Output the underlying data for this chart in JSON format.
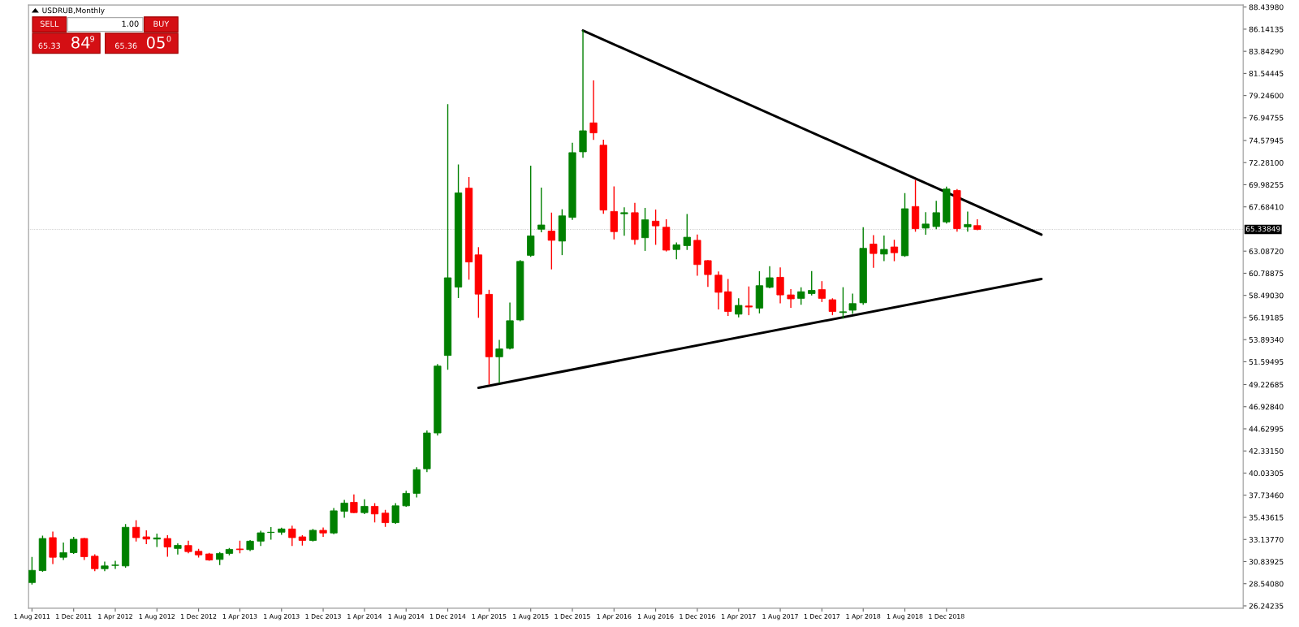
{
  "chart_data": {
    "type": "candlestick",
    "title": "USDRUB,Monthly",
    "x": [
      "2011-08",
      "2011-09",
      "2011-10",
      "2011-11",
      "2011-12",
      "2012-01",
      "2012-02",
      "2012-03",
      "2012-04",
      "2012-05",
      "2012-06",
      "2012-07",
      "2012-08",
      "2012-09",
      "2012-10",
      "2012-11",
      "2012-12",
      "2013-01",
      "2013-02",
      "2013-03",
      "2013-04",
      "2013-05",
      "2013-06",
      "2013-07",
      "2013-08",
      "2013-09",
      "2013-10",
      "2013-11",
      "2013-12",
      "2014-01",
      "2014-02",
      "2014-03",
      "2014-04",
      "2014-05",
      "2014-06",
      "2014-07",
      "2014-08",
      "2014-09",
      "2014-10",
      "2014-11",
      "2014-12",
      "2015-01",
      "2015-02",
      "2015-03",
      "2015-04",
      "2015-05",
      "2015-06",
      "2015-07",
      "2015-08",
      "2015-09",
      "2015-10",
      "2015-11",
      "2015-12",
      "2016-01",
      "2016-02",
      "2016-03",
      "2016-04",
      "2016-05",
      "2016-06",
      "2016-07",
      "2016-08",
      "2016-09",
      "2016-10",
      "2016-11",
      "2016-12",
      "2017-01",
      "2017-02",
      "2017-03",
      "2017-04",
      "2017-05",
      "2017-06",
      "2017-07",
      "2017-08",
      "2017-09",
      "2017-10",
      "2017-11",
      "2017-12",
      "2018-01",
      "2018-02",
      "2018-03",
      "2018-04",
      "2018-05",
      "2018-06",
      "2018-07",
      "2018-08",
      "2018-09",
      "2018-10",
      "2018-11",
      "2018-12",
      "2019-01",
      "2019-02",
      "2019-03"
    ],
    "ohlc": [
      [
        28.66,
        31.26,
        28.52,
        29.93
      ],
      [
        29.9,
        33.47,
        29.85,
        33.24
      ],
      [
        33.33,
        33.89,
        30.64,
        31.29
      ],
      [
        31.29,
        32.76,
        31.06,
        31.77
      ],
      [
        31.77,
        33.35,
        31.69,
        33.16
      ],
      [
        33.24,
        33.24,
        31.06,
        31.35
      ],
      [
        31.4,
        31.54,
        29.9,
        30.1
      ],
      [
        30.1,
        30.78,
        29.9,
        30.39
      ],
      [
        30.44,
        30.87,
        30.13,
        30.48
      ],
      [
        30.39,
        34.68,
        30.27,
        34.4
      ],
      [
        34.4,
        35.08,
        32.99,
        33.33
      ],
      [
        33.41,
        34.03,
        32.7,
        33.18
      ],
      [
        33.18,
        33.69,
        32.42,
        33.3
      ],
      [
        33.24,
        33.52,
        31.4,
        32.36
      ],
      [
        32.2,
        32.68,
        31.63,
        32.53
      ],
      [
        32.51,
        32.96,
        31.77,
        31.88
      ],
      [
        31.91,
        32.11,
        31.32,
        31.54
      ],
      [
        31.63,
        31.69,
        30.98,
        31.01
      ],
      [
        31.06,
        31.77,
        30.53,
        31.69
      ],
      [
        31.69,
        32.2,
        31.54,
        32.11
      ],
      [
        32.15,
        32.96,
        31.77,
        32.08
      ],
      [
        32.08,
        33.01,
        31.99,
        32.96
      ],
      [
        32.96,
        33.98,
        32.51,
        33.83
      ],
      [
        33.86,
        34.37,
        33.18,
        33.89
      ],
      [
        33.89,
        34.29,
        33.69,
        34.23
      ],
      [
        34.23,
        34.51,
        32.51,
        33.33
      ],
      [
        33.41,
        33.52,
        32.56,
        33.04
      ],
      [
        33.04,
        34.17,
        32.99,
        34.09
      ],
      [
        34.09,
        34.32,
        33.47,
        33.81
      ],
      [
        33.81,
        36.35,
        33.75,
        36.12
      ],
      [
        36.07,
        37.2,
        35.45,
        36.92
      ],
      [
        37.0,
        37.76,
        35.93,
        35.93
      ],
      [
        35.93,
        37.26,
        35.84,
        36.58
      ],
      [
        36.58,
        36.86,
        34.97,
        35.79
      ],
      [
        35.87,
        36.15,
        34.51,
        34.88
      ],
      [
        34.88,
        36.86,
        34.82,
        36.63
      ],
      [
        36.63,
        38.13,
        36.58,
        37.93
      ],
      [
        37.93,
        40.59,
        37.57,
        40.39
      ],
      [
        40.48,
        44.4,
        40.2,
        44.2
      ],
      [
        44.2,
        51.3,
        44.0,
        51.15
      ],
      [
        52.25,
        78.3,
        50.82,
        60.32
      ],
      [
        59.36,
        72.03,
        58.27,
        69.13
      ],
      [
        69.63,
        70.72,
        60.18,
        61.96
      ],
      [
        62.7,
        63.44,
        56.22,
        58.62
      ],
      [
        58.6,
        59.01,
        49.29,
        52.11
      ],
      [
        52.11,
        53.81,
        49.43,
        52.93
      ],
      [
        52.99,
        57.69,
        52.93,
        55.86
      ],
      [
        55.94,
        62.1,
        55.86,
        62.02
      ],
      [
        62.65,
        71.9,
        62.56,
        64.67
      ],
      [
        65.36,
        69.63,
        65.11,
        65.8
      ],
      [
        65.17,
        67.03,
        61.25,
        64.21
      ],
      [
        64.13,
        67.38,
        62.73,
        66.75
      ],
      [
        66.59,
        74.28,
        66.4,
        73.32
      ],
      [
        73.4,
        85.96,
        72.85,
        75.59
      ],
      [
        76.41,
        80.76,
        74.69,
        75.37
      ],
      [
        74.09,
        74.61,
        67.02,
        67.35
      ],
      [
        67.21,
        69.76,
        64.37,
        65.11
      ],
      [
        66.97,
        67.57,
        64.75,
        67.08
      ],
      [
        67.08,
        68.04,
        63.82,
        64.29
      ],
      [
        64.48,
        67.52,
        63.17,
        66.34
      ],
      [
        66.2,
        67.35,
        63.8,
        65.71
      ],
      [
        65.57,
        66.34,
        63.11,
        63.19
      ],
      [
        63.25,
        63.93,
        62.29,
        63.74
      ],
      [
        63.66,
        66.89,
        63.27,
        64.53
      ],
      [
        64.21,
        64.75,
        60.59,
        61.69
      ],
      [
        62.1,
        62.1,
        59.44,
        60.65
      ],
      [
        60.59,
        60.92,
        57.09,
        58.81
      ],
      [
        58.87,
        60.13,
        56.41,
        56.82
      ],
      [
        56.54,
        58.13,
        56.27,
        57.45
      ],
      [
        57.39,
        59.36,
        56.49,
        57.28
      ],
      [
        57.17,
        60.95,
        56.68,
        59.5
      ],
      [
        59.33,
        61.47,
        59.28,
        60.32
      ],
      [
        60.37,
        61.33,
        57.72,
        58.54
      ],
      [
        58.54,
        59.09,
        57.25,
        58.13
      ],
      [
        58.18,
        59.28,
        57.58,
        58.87
      ],
      [
        58.68,
        60.95,
        58.54,
        59.01
      ],
      [
        59.09,
        59.91,
        57.86,
        58.18
      ],
      [
        58.04,
        58.13,
        56.49,
        56.82
      ],
      [
        56.71,
        59.28,
        56.13,
        56.79
      ],
      [
        56.95,
        58.62,
        56.62,
        57.64
      ],
      [
        57.72,
        65.52,
        57.58,
        63.38
      ],
      [
        63.82,
        64.7,
        61.41,
        62.84
      ],
      [
        62.78,
        64.64,
        62.1,
        63.27
      ],
      [
        63.52,
        64.21,
        62.1,
        62.92
      ],
      [
        62.61,
        69.06,
        62.55,
        67.49
      ],
      [
        67.72,
        70.43,
        65.16,
        65.42
      ],
      [
        65.48,
        67.08,
        64.84,
        65.9
      ],
      [
        65.64,
        68.26,
        65.42,
        67.08
      ],
      [
        66.12,
        69.73,
        66.02,
        69.54
      ],
      [
        69.38,
        69.47,
        65.16,
        65.42
      ],
      [
        65.61,
        67.14,
        65.16,
        65.86
      ],
      [
        65.74,
        66.34,
        65.32,
        65.33
      ]
    ],
    "colors": [
      "#008000",
      "#008000",
      "#ff0000",
      "#008000",
      "#008000",
      "#ff0000",
      "#ff0000",
      "#008000",
      "#008000",
      "#008000",
      "#ff0000",
      "#ff0000",
      "#008000",
      "#ff0000",
      "#008000",
      "#ff0000",
      "#ff0000",
      "#ff0000",
      "#008000",
      "#008000",
      "#ff0000",
      "#008000",
      "#008000",
      "#008000",
      "#008000",
      "#ff0000",
      "#ff0000",
      "#008000",
      "#ff0000",
      "#008000",
      "#008000",
      "#ff0000",
      "#008000",
      "#ff0000",
      "#ff0000",
      "#008000",
      "#008000",
      "#008000",
      "#008000",
      "#008000",
      "#008000",
      "#008000",
      "#ff0000",
      "#ff0000",
      "#ff0000",
      "#008000",
      "#008000",
      "#008000",
      "#008000",
      "#008000",
      "#ff0000",
      "#008000",
      "#008000",
      "#008000",
      "#ff0000",
      "#ff0000",
      "#ff0000",
      "#008000",
      "#ff0000",
      "#008000",
      "#ff0000",
      "#ff0000",
      "#008000",
      "#008000",
      "#ff0000",
      "#ff0000",
      "#ff0000",
      "#ff0000",
      "#008000",
      "#ff0000",
      "#008000",
      "#008000",
      "#ff0000",
      "#ff0000",
      "#008000",
      "#008000",
      "#ff0000",
      "#ff0000",
      "#008000",
      "#008000",
      "#008000",
      "#ff0000",
      "#008000",
      "#ff0000",
      "#008000",
      "#ff0000",
      "#008000",
      "#008000",
      "#008000",
      "#ff0000",
      "#008000",
      "#ff0000"
    ],
    "series": [
      {
        "type": "line",
        "x": [
          "2016-01",
          "2019-09-05"
        ],
        "values": [
          86.0,
          64.8
        ],
        "color": "#000000"
      },
      {
        "type": "line",
        "x": [
          "2015-03",
          "2019-09-05"
        ],
        "values": [
          48.9,
          60.2
        ],
        "color": "#000000"
      }
    ],
    "xlim": [
      "2011-07-22",
      "2021-04-18"
    ],
    "xticks": [
      {
        "value": "2011-08",
        "label": "1 Aug 2011"
      },
      {
        "value": "2011-12",
        "label": "1 Dec 2011"
      },
      {
        "value": "2012-04",
        "label": "1 Apr 2012"
      },
      {
        "value": "2012-08",
        "label": "1 Aug 2012"
      },
      {
        "value": "2012-12",
        "label": "1 Dec 2012"
      },
      {
        "value": "2013-04",
        "label": "1 Apr 2013"
      },
      {
        "value": "2013-08",
        "label": "1 Aug 2013"
      },
      {
        "value": "2013-12",
        "label": "1 Dec 2013"
      },
      {
        "value": "2014-04",
        "label": "1 Apr 2014"
      },
      {
        "value": "2014-08",
        "label": "1 Aug 2014"
      },
      {
        "value": "2014-12",
        "label": "1 Dec 2014"
      },
      {
        "value": "2015-04",
        "label": "1 Apr 2015"
      },
      {
        "value": "2015-08",
        "label": "1 Aug 2015"
      },
      {
        "value": "2015-12",
        "label": "1 Dec 2015"
      },
      {
        "value": "2016-04",
        "label": "1 Apr 2016"
      },
      {
        "value": "2016-08",
        "label": "1 Aug 2016"
      },
      {
        "value": "2016-12",
        "label": "1 Dec 2016"
      },
      {
        "value": "2017-04",
        "label": "1 Apr 2017"
      },
      {
        "value": "2017-08",
        "label": "1 Aug 2017"
      },
      {
        "value": "2017-12",
        "label": "1 Dec 2017"
      },
      {
        "value": "2018-04",
        "label": "1 Apr 2018"
      },
      {
        "value": "2018-08",
        "label": "1 Aug 2018"
      },
      {
        "value": "2018-12",
        "label": "1 Dec 2018"
      }
    ],
    "ylim": [
      26.0,
      88.65
    ],
    "yticks": [
      {
        "value": 26.24235,
        "label": "26.24235"
      },
      {
        "value": 28.5408,
        "label": "28.54080"
      },
      {
        "value": 30.83925,
        "label": "30.83925"
      },
      {
        "value": 33.1377,
        "label": "33.13770"
      },
      {
        "value": 35.43615,
        "label": "35.43615"
      },
      {
        "value": 37.7346,
        "label": "37.73460"
      },
      {
        "value": 40.03305,
        "label": "40.03305"
      },
      {
        "value": 42.3315,
        "label": "42.33150"
      },
      {
        "value": 44.62995,
        "label": "44.62995"
      },
      {
        "value": 46.9284,
        "label": "46.92840"
      },
      {
        "value": 49.22685,
        "label": "49.22685"
      },
      {
        "value": 51.59495,
        "label": "51.59495"
      },
      {
        "value": 53.8934,
        "label": "53.89340"
      },
      {
        "value": 56.19185,
        "label": "56.19185"
      },
      {
        "value": 58.4903,
        "label": "58.49030"
      },
      {
        "value": 60.78875,
        "label": "60.78875"
      },
      {
        "value": 63.0872,
        "label": "63.08720"
      },
      {
        "value": 67.6841,
        "label": "67.68410"
      },
      {
        "value": 69.98255,
        "label": "69.98255"
      },
      {
        "value": 72.281,
        "label": "72.28100"
      },
      {
        "value": 74.57945,
        "label": "74.57945"
      },
      {
        "value": 76.94755,
        "label": "76.94755"
      },
      {
        "value": 79.246,
        "label": "79.24600"
      },
      {
        "value": 81.54445,
        "label": "81.54445"
      },
      {
        "value": 83.8429,
        "label": "83.84290"
      },
      {
        "value": 86.14135,
        "label": "86.14135"
      },
      {
        "value": 88.4398,
        "label": "88.43980"
      }
    ],
    "ref_lines": [
      {
        "axis": "y",
        "value": 65.33849,
        "label": "65.33849",
        "color": "#bbbbbb",
        "line_style": "dotted"
      }
    ],
    "annotations": [
      "SELL",
      "1.00",
      "BUY",
      "65.33",
      "84",
      "9",
      "65.36",
      "05",
      "0"
    ],
    "grid": false
  }
}
